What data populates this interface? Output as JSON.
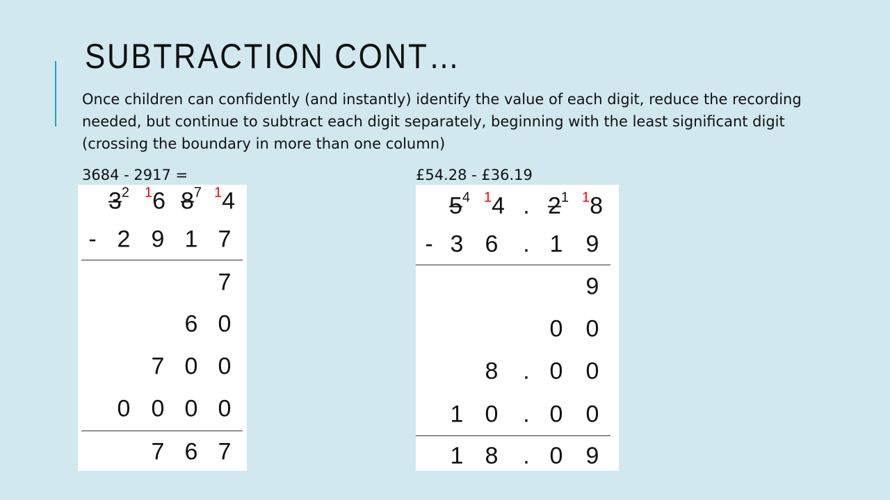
{
  "title": "SUBTRACTION CONT…",
  "body": "Once children can confidently (and instantly) identify the value of each digit, reduce the recording needed, but continue to subtract each digit separately, beginning with the least significant digit (crossing the boundary in more than one column)",
  "left": {
    "expression": "3684 - 2917 =",
    "top": [
      {
        "pre": "",
        "digit": "3",
        "sup": "2",
        "strike": true
      },
      {
        "pre": "1",
        "digit": "6",
        "sup": "",
        "strike": false
      },
      {
        "pre": "",
        "digit": "8",
        "sup": "7",
        "strike": true
      },
      {
        "pre": "1",
        "digit": "4",
        "sup": "",
        "strike": false
      }
    ],
    "rows": [
      [
        "-",
        "2",
        "9",
        "1",
        "7"
      ],
      [
        "",
        "",
        "",
        "",
        "7"
      ],
      [
        "",
        "",
        "",
        "6",
        "0"
      ],
      [
        "",
        "",
        "7",
        "0",
        "0"
      ],
      [
        "",
        "0",
        "0",
        "0",
        "0"
      ],
      [
        "",
        "",
        "7",
        "6",
        "7"
      ]
    ]
  },
  "right": {
    "expression": "£54.28 - £36.19",
    "top": [
      {
        "pre": "",
        "digit": "5",
        "sup": "4",
        "strike": true
      },
      {
        "pre": "1",
        "digit": "4",
        "sup": "",
        "strike": false
      },
      {
        "pre": "",
        "digit": ".",
        "sup": "",
        "strike": false
      },
      {
        "pre": "",
        "digit": "2",
        "sup": "1",
        "strike": true
      },
      {
        "pre": "1",
        "digit": "8",
        "sup": "",
        "strike": false
      }
    ],
    "rows": [
      [
        "-",
        "3",
        "6",
        ".",
        "1",
        "9"
      ],
      [
        "",
        "",
        "",
        "",
        "",
        "9"
      ],
      [
        "",
        "",
        "",
        "",
        "0",
        "0"
      ],
      [
        "",
        "",
        "8",
        ".",
        "0",
        "0"
      ],
      [
        "",
        "1",
        "0",
        ".",
        "0",
        "0"
      ],
      [
        "",
        "1",
        "8",
        ".",
        "0",
        "9"
      ]
    ]
  },
  "colors": {
    "background": "#d0e8ee",
    "accent": "#2a9fbc",
    "carry": "#e00000"
  }
}
